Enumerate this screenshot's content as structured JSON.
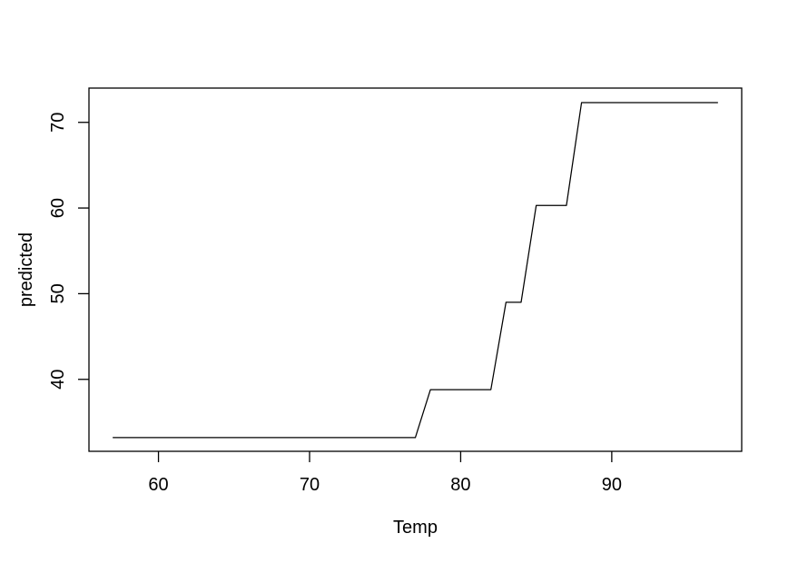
{
  "chart_data": {
    "type": "line",
    "title": "",
    "xlabel": "Temp",
    "ylabel": "predicted",
    "x": [
      57,
      77,
      78,
      82,
      83,
      84,
      85,
      87,
      88,
      97
    ],
    "y": [
      33.2,
      33.2,
      38.8,
      38.8,
      49.0,
      49.0,
      60.3,
      60.3,
      72.3,
      72.3
    ],
    "xticks": [
      60,
      70,
      80,
      90
    ],
    "yticks": [
      40,
      50,
      60,
      70
    ],
    "xlim": [
      55.4,
      98.6
    ],
    "ylim": [
      31.6,
      74.0
    ],
    "grid": false,
    "legend_position": "none",
    "line_color": "#000000",
    "axis_color": "#000000",
    "background_color": "#ffffff"
  }
}
